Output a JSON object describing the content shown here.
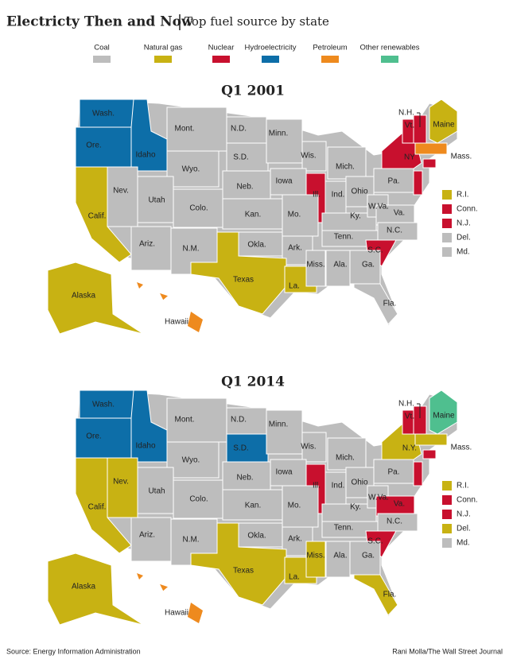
{
  "title": "Electricty Then and Now",
  "subtitle": "Top fuel source by state",
  "legend": [
    {
      "label": "Coal",
      "color": "#bdbdbd"
    },
    {
      "label": "Natural gas",
      "color": "#c8b213"
    },
    {
      "label": "Nuclear",
      "color": "#c8102e"
    },
    {
      "label": "Hydroelectricity",
      "color": "#0d6ea8"
    },
    {
      "label": "Petroleum",
      "color": "#ee8a1e"
    },
    {
      "label": "Other renewables",
      "color": "#4fbf8f"
    }
  ],
  "maps": [
    {
      "title": "Q1 2001",
      "states": [
        {
          "label": "Wash.",
          "fuel": "Hydroelectricity"
        },
        {
          "label": "Ore.",
          "fuel": "Hydroelectricity"
        },
        {
          "label": "Idaho",
          "fuel": "Hydroelectricity"
        },
        {
          "label": "Mont.",
          "fuel": "Coal"
        },
        {
          "label": "Wyo.",
          "fuel": "Coal"
        },
        {
          "label": "N.D.",
          "fuel": "Coal"
        },
        {
          "label": "S.D.",
          "fuel": "Coal"
        },
        {
          "label": "Minn.",
          "fuel": "Coal"
        },
        {
          "label": "Wis.",
          "fuel": "Coal"
        },
        {
          "label": "Mich.",
          "fuel": "Coal"
        },
        {
          "label": "Neb.",
          "fuel": "Coal"
        },
        {
          "label": "Iowa",
          "fuel": "Coal"
        },
        {
          "label": "Ill.",
          "fuel": "Nuclear"
        },
        {
          "label": "Ind.",
          "fuel": "Coal"
        },
        {
          "label": "Ohio",
          "fuel": "Coal"
        },
        {
          "label": "Pa.",
          "fuel": "Coal"
        },
        {
          "label": "NY",
          "fuel": "Nuclear"
        },
        {
          "label": "Nev.",
          "fuel": "Coal"
        },
        {
          "label": "Utah",
          "fuel": "Coal"
        },
        {
          "label": "Colo.",
          "fuel": "Coal"
        },
        {
          "label": "Kan.",
          "fuel": "Coal"
        },
        {
          "label": "Mo.",
          "fuel": "Coal"
        },
        {
          "label": "Ky.",
          "fuel": "Coal"
        },
        {
          "label": "W.Va.",
          "fuel": "Coal"
        },
        {
          "label": "Va.",
          "fuel": "Coal"
        },
        {
          "label": "Calif.",
          "fuel": "Natural gas"
        },
        {
          "label": "Ariz.",
          "fuel": "Coal"
        },
        {
          "label": "N.M.",
          "fuel": "Coal"
        },
        {
          "label": "Okla.",
          "fuel": "Coal"
        },
        {
          "label": "Ark.",
          "fuel": "Coal"
        },
        {
          "label": "Tenn.",
          "fuel": "Coal"
        },
        {
          "label": "N.C.",
          "fuel": "Coal"
        },
        {
          "label": "S.C.",
          "fuel": "Nuclear"
        },
        {
          "label": "Texas",
          "fuel": "Natural gas"
        },
        {
          "label": "La.",
          "fuel": "Natural gas"
        },
        {
          "label": "Miss.",
          "fuel": "Coal"
        },
        {
          "label": "Ala.",
          "fuel": "Coal"
        },
        {
          "label": "Ga.",
          "fuel": "Coal"
        },
        {
          "label": "Fla.",
          "fuel": "Coal"
        },
        {
          "label": "Maine",
          "fuel": "Natural gas"
        },
        {
          "label": "Vt.",
          "fuel": "Nuclear"
        },
        {
          "label": "N.H.",
          "fuel": "Nuclear"
        },
        {
          "label": "Mass.",
          "fuel": "Petroleum"
        },
        {
          "label": "Alaska",
          "fuel": "Natural gas"
        },
        {
          "label": "Hawaii",
          "fuel": "Petroleum"
        }
      ],
      "small_states": [
        {
          "label": "R.I.",
          "fuel": "Natural gas"
        },
        {
          "label": "Conn.",
          "fuel": "Nuclear"
        },
        {
          "label": "N.J.",
          "fuel": "Nuclear"
        },
        {
          "label": "Del.",
          "fuel": "Coal"
        },
        {
          "label": "Md.",
          "fuel": "Coal"
        }
      ]
    },
    {
      "title": "Q1 2014",
      "states": [
        {
          "label": "Wash.",
          "fuel": "Hydroelectricity"
        },
        {
          "label": "Ore.",
          "fuel": "Hydroelectricity"
        },
        {
          "label": "Idaho",
          "fuel": "Hydroelectricity"
        },
        {
          "label": "Mont.",
          "fuel": "Coal"
        },
        {
          "label": "Wyo.",
          "fuel": "Coal"
        },
        {
          "label": "N.D.",
          "fuel": "Coal"
        },
        {
          "label": "S.D.",
          "fuel": "Hydroelectricity"
        },
        {
          "label": "Minn.",
          "fuel": "Coal"
        },
        {
          "label": "Wis.",
          "fuel": "Coal"
        },
        {
          "label": "Mich.",
          "fuel": "Coal"
        },
        {
          "label": "Neb.",
          "fuel": "Coal"
        },
        {
          "label": "Iowa",
          "fuel": "Coal"
        },
        {
          "label": "Ill.",
          "fuel": "Nuclear"
        },
        {
          "label": "Ind.",
          "fuel": "Coal"
        },
        {
          "label": "Ohio",
          "fuel": "Coal"
        },
        {
          "label": "Pa.",
          "fuel": "Coal"
        },
        {
          "label": "N.Y.",
          "fuel": "Natural gas"
        },
        {
          "label": "Nev.",
          "fuel": "Natural gas"
        },
        {
          "label": "Utah",
          "fuel": "Coal"
        },
        {
          "label": "Colo.",
          "fuel": "Coal"
        },
        {
          "label": "Kan.",
          "fuel": "Coal"
        },
        {
          "label": "Mo.",
          "fuel": "Coal"
        },
        {
          "label": "Ky.",
          "fuel": "Coal"
        },
        {
          "label": "W.Va.",
          "fuel": "Coal"
        },
        {
          "label": "Va.",
          "fuel": "Nuclear"
        },
        {
          "label": "Calif.",
          "fuel": "Natural gas"
        },
        {
          "label": "Ariz.",
          "fuel": "Coal"
        },
        {
          "label": "N.M.",
          "fuel": "Coal"
        },
        {
          "label": "Okla.",
          "fuel": "Coal"
        },
        {
          "label": "Ark.",
          "fuel": "Coal"
        },
        {
          "label": "Tenn.",
          "fuel": "Coal"
        },
        {
          "label": "N.C.",
          "fuel": "Coal"
        },
        {
          "label": "S.C.",
          "fuel": "Nuclear"
        },
        {
          "label": "Texas",
          "fuel": "Natural gas"
        },
        {
          "label": "La.",
          "fuel": "Natural gas"
        },
        {
          "label": "Miss.",
          "fuel": "Natural gas"
        },
        {
          "label": "Ala.",
          "fuel": "Coal"
        },
        {
          "label": "Ga.",
          "fuel": "Coal"
        },
        {
          "label": "Fla.",
          "fuel": "Natural gas"
        },
        {
          "label": "Maine",
          "fuel": "Other renewables"
        },
        {
          "label": "Vt.",
          "fuel": "Nuclear"
        },
        {
          "label": "N.H.",
          "fuel": "Nuclear"
        },
        {
          "label": "Mass.",
          "fuel": "Natural gas"
        },
        {
          "label": "Alaska",
          "fuel": "Natural gas"
        },
        {
          "label": "Hawaii",
          "fuel": "Petroleum"
        }
      ],
      "small_states": [
        {
          "label": "R.I.",
          "fuel": "Natural gas"
        },
        {
          "label": "Conn.",
          "fuel": "Nuclear"
        },
        {
          "label": "N.J.",
          "fuel": "Nuclear"
        },
        {
          "label": "Del.",
          "fuel": "Natural gas"
        },
        {
          "label": "Md.",
          "fuel": "Coal"
        }
      ]
    }
  ],
  "source": "Source: Energy Information Administration",
  "credit": "Rani Molla/The Wall Street Journal"
}
